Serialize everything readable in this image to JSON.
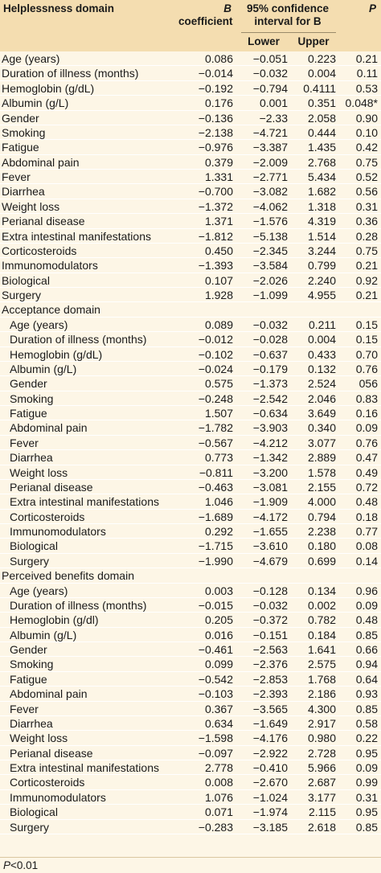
{
  "header": {
    "domain_label": "Helplessness domain",
    "b_line1": "B",
    "b_line2": "coefficient",
    "ci_line1": "95% confidence",
    "ci_line2": "interval for B",
    "lower": "Lower",
    "upper": "Upper",
    "p": "P"
  },
  "rows": [
    {
      "var": "Age (years)",
      "b": "0.086",
      "lo": "−0.051",
      "up": "0.223",
      "p": "0.21",
      "indent": false
    },
    {
      "var": "Duration of illness (months)",
      "b": "−0.014",
      "lo": "−0.032",
      "up": "0.004",
      "p": "0.11",
      "indent": false
    },
    {
      "var": "Hemoglobin (g/dL)",
      "b": "−0.192",
      "lo": "−0.794",
      "up": "0.4111",
      "p": "0.53",
      "indent": false
    },
    {
      "var": "Albumin (g/L)",
      "b": "0.176",
      "lo": "0.001",
      "up": "0.351",
      "p": "0.048*",
      "indent": false
    },
    {
      "var": "Gender",
      "b": "−0.136",
      "lo": "−2.33",
      "up": "2.058",
      "p": "0.90",
      "indent": false
    },
    {
      "var": "Smoking",
      "b": "−2.138",
      "lo": "−4.721",
      "up": "0.444",
      "p": "0.10",
      "indent": false
    },
    {
      "var": "Fatigue",
      "b": "−0.976",
      "lo": "−3.387",
      "up": "1.435",
      "p": "0.42",
      "indent": false
    },
    {
      "var": "Abdominal pain",
      "b": "0.379",
      "lo": "−2.009",
      "up": "2.768",
      "p": "0.75",
      "indent": false
    },
    {
      "var": "Fever",
      "b": "1.331",
      "lo": "−2.771",
      "up": "5.434",
      "p": "0.52",
      "indent": false
    },
    {
      "var": "Diarrhea",
      "b": "−0.700",
      "lo": "−3.082",
      "up": "1.682",
      "p": "0.56",
      "indent": false
    },
    {
      "var": "Weight loss",
      "b": "−1.372",
      "lo": "−4.062",
      "up": "1.318",
      "p": "0.31",
      "indent": false
    },
    {
      "var": "Perianal disease",
      "b": "1.371",
      "lo": "−1.576",
      "up": "4.319",
      "p": "0.36",
      "indent": false
    },
    {
      "var": "Extra intestinal manifestations",
      "b": "−1.812",
      "lo": "−5.138",
      "up": "1.514",
      "p": "0.28",
      "indent": false
    },
    {
      "var": "Corticosteroids",
      "b": "0.450",
      "lo": "−2.345",
      "up": "3.244",
      "p": "0.75",
      "indent": false
    },
    {
      "var": "Immunomodulators",
      "b": "−1.393",
      "lo": "−3.584",
      "up": "0.799",
      "p": "0.21",
      "indent": false
    },
    {
      "var": "Biological",
      "b": "0.107",
      "lo": "−2.026",
      "up": "2.240",
      "p": "0.92",
      "indent": false
    },
    {
      "var": "Surgery",
      "b": "1.928",
      "lo": "−1.099",
      "up": "4.955",
      "p": "0.21",
      "indent": false
    },
    {
      "var": "Acceptance domain",
      "b": "",
      "lo": "",
      "up": "",
      "p": "",
      "section": true
    },
    {
      "var": "Age (years)",
      "b": "0.089",
      "lo": "−0.032",
      "up": "0.211",
      "p": "0.15",
      "indent": true
    },
    {
      "var": "Duration of illness (months)",
      "b": "−0.012",
      "lo": "−0.028",
      "up": "0.004",
      "p": "0.15",
      "indent": true
    },
    {
      "var": "Hemoglobin (g/dL)",
      "b": "−0.102",
      "lo": "−0.637",
      "up": "0.433",
      "p": "0.70",
      "indent": true
    },
    {
      "var": "Albumin (g/L)",
      "b": "−0.024",
      "lo": "−0.179",
      "up": "0.132",
      "p": "0.76",
      "indent": true
    },
    {
      "var": "Gender",
      "b": "0.575",
      "lo": "−1.373",
      "up": "2.524",
      "p": "056",
      "indent": true
    },
    {
      "var": "Smoking",
      "b": "−0.248",
      "lo": "−2.542",
      "up": "2.046",
      "p": "0.83",
      "indent": true
    },
    {
      "var": "Fatigue",
      "b": "1.507",
      "lo": "−0.634",
      "up": "3.649",
      "p": "0.16",
      "indent": true
    },
    {
      "var": "Abdominal pain",
      "b": "−1.782",
      "lo": "−3.903",
      "up": "0.340",
      "p": "0.09",
      "indent": true
    },
    {
      "var": "Fever",
      "b": "−0.567",
      "lo": "−4.212",
      "up": "3.077",
      "p": "0.76",
      "indent": true
    },
    {
      "var": "Diarrhea",
      "b": "0.773",
      "lo": "−1.342",
      "up": "2.889",
      "p": "0.47",
      "indent": true
    },
    {
      "var": "Weight loss",
      "b": "−0.811",
      "lo": "−3.200",
      "up": "1.578",
      "p": "0.49",
      "indent": true
    },
    {
      "var": "Perianal disease",
      "b": "−0.463",
      "lo": "−3.081",
      "up": "2.155",
      "p": "0.72",
      "indent": true
    },
    {
      "var": "Extra intestinal manifestations",
      "b": "1.046",
      "lo": "−1.909",
      "up": "4.000",
      "p": "0.48",
      "indent": true
    },
    {
      "var": "Corticosteroids",
      "b": "−1.689",
      "lo": "−4.172",
      "up": "0.794",
      "p": "0.18",
      "indent": true
    },
    {
      "var": "Immunomodulators",
      "b": "0.292",
      "lo": "−1.655",
      "up": "2.238",
      "p": "0.77",
      "indent": true
    },
    {
      "var": "Biological",
      "b": "−1.715",
      "lo": "−3.610",
      "up": "0.180",
      "p": "0.08",
      "indent": true
    },
    {
      "var": "Surgery",
      "b": "−1.990",
      "lo": "−4.679",
      "up": "0.699",
      "p": "0.14",
      "indent": true
    },
    {
      "var": "Perceived benefits domain",
      "b": "",
      "lo": "",
      "up": "",
      "p": "",
      "section": true
    },
    {
      "var": "Age (years)",
      "b": "0.003",
      "lo": "−0.128",
      "up": "0.134",
      "p": "0.96",
      "indent": true
    },
    {
      "var": "Duration of illness (months)",
      "b": "−0.015",
      "lo": "−0.032",
      "up": "0.002",
      "p": "0.09",
      "indent": true
    },
    {
      "var": "Hemoglobin (g/dl)",
      "b": "0.205",
      "lo": "−0.372",
      "up": "0.782",
      "p": "0.48",
      "indent": true
    },
    {
      "var": "Albumin (g/L)",
      "b": "0.016",
      "lo": "−0.151",
      "up": "0.184",
      "p": "0.85",
      "indent": true
    },
    {
      "var": "Gender",
      "b": "−0.461",
      "lo": "−2.563",
      "up": "1.641",
      "p": "0.66",
      "indent": true
    },
    {
      "var": "Smoking",
      "b": "0.099",
      "lo": "−2.376",
      "up": "2.575",
      "p": "0.94",
      "indent": true
    },
    {
      "var": "Fatigue",
      "b": "−0.542",
      "lo": "−2.853",
      "up": "1.768",
      "p": "0.64",
      "indent": true
    },
    {
      "var": "Abdominal pain",
      "b": "−0.103",
      "lo": "−2.393",
      "up": "2.186",
      "p": "0.93",
      "indent": true
    },
    {
      "var": "Fever",
      "b": "0.367",
      "lo": "−3.565",
      "up": "4.300",
      "p": "0.85",
      "indent": true
    },
    {
      "var": "Diarrhea",
      "b": "0.634",
      "lo": "−1.649",
      "up": "2.917",
      "p": "0.58",
      "indent": true
    },
    {
      "var": "Weight loss",
      "b": "−1.598",
      "lo": "−4.176",
      "up": "0.980",
      "p": "0.22",
      "indent": true
    },
    {
      "var": "Perianal disease",
      "b": "−0.097",
      "lo": "−2.922",
      "up": "2.728",
      "p": "0.95",
      "indent": true
    },
    {
      "var": "Extra intestinal manifestations",
      "b": "2.778",
      "lo": "−0.410",
      "up": "5.966",
      "p": "0.09",
      "indent": true
    },
    {
      "var": "Corticosteroids",
      "b": "0.008",
      "lo": "−2.670",
      "up": "2.687",
      "p": "0.99",
      "indent": true
    },
    {
      "var": "Immunomodulators",
      "b": "1.076",
      "lo": "−1.024",
      "up": "3.177",
      "p": "0.31",
      "indent": true
    },
    {
      "var": "Biological",
      "b": "0.071",
      "lo": "−1.974",
      "up": "2.115",
      "p": "0.95",
      "indent": true
    },
    {
      "var": "Surgery",
      "b": "−0.283",
      "lo": "−3.185",
      "up": "2.618",
      "p": "0.85",
      "indent": true
    }
  ],
  "footer": {
    "p_symbol": "P",
    "text": "<0.01"
  },
  "colors": {
    "header_bg": "#f4ddb0",
    "body_bg": "#fdf6e6"
  }
}
